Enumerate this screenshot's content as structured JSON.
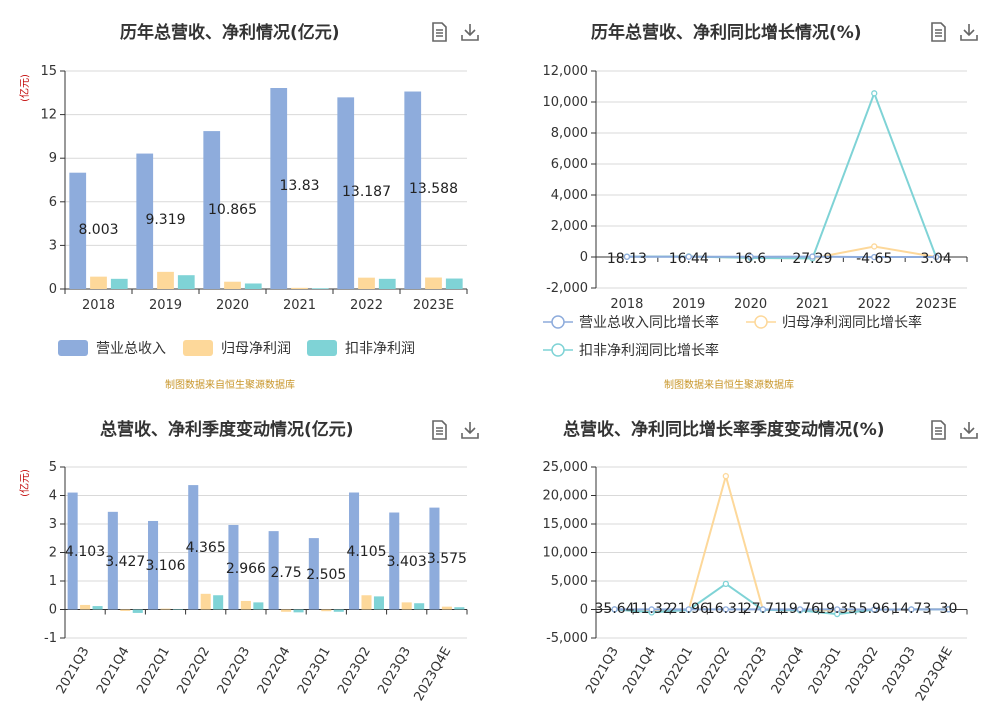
{
  "panels": {
    "p1": {
      "title": "历年总营收、净利情况(亿元)",
      "ylabel": "(亿元)",
      "source": "制图数据来自恒生聚源数据库"
    },
    "p2": {
      "title": "历年总营收、净利同比增长情况(%)",
      "source": "制图数据来自恒生聚源数据库"
    },
    "p3": {
      "title": "总营收、净利季度变动情况(亿元)",
      "ylabel": "(亿元)"
    },
    "p4": {
      "title": "总营收、净利同比增长率季度变动情况(%)"
    }
  },
  "icons": [
    "document-icon",
    "download-icon"
  ],
  "colors": {
    "revenue": "#8eacdc",
    "parent_profit": "#fdd89a",
    "deducted_profit": "#7fd3d6",
    "source_text": "#c8962a",
    "ylabel_text": "#c00000"
  },
  "chart_data": [
    {
      "type": "bar",
      "categories": [
        "2018",
        "2019",
        "2020",
        "2021",
        "2022",
        "2023E"
      ],
      "series": [
        {
          "name": "营业总收入",
          "values": [
            8.003,
            9.319,
            10.865,
            13.83,
            13.187,
            13.588
          ],
          "labels": [
            "8.003",
            "9.319",
            "10.865",
            "13.83",
            "13.187",
            "13.588"
          ]
        },
        {
          "name": "归母净利润",
          "values": [
            0.85,
            1.18,
            0.5,
            0.08,
            0.78,
            0.79
          ]
        },
        {
          "name": "扣非净利润",
          "values": [
            0.7,
            0.95,
            0.38,
            0.05,
            0.7,
            0.72
          ]
        }
      ],
      "ylim": [
        0,
        15
      ],
      "yticks": [
        "0",
        "3",
        "6",
        "9",
        "12",
        "15"
      ],
      "ylabel": "(亿元)",
      "grid": true,
      "legend": "bottom"
    },
    {
      "type": "line",
      "categories": [
        "2018",
        "2019",
        "2020",
        "2021",
        "2022",
        "2023E"
      ],
      "series": [
        {
          "name": "营业总收入同比增长率",
          "values": [
            18.13,
            16.44,
            16.6,
            27.29,
            -4.65,
            3.04
          ],
          "labels": [
            "18.13",
            "16.44",
            "16.6",
            "27.29",
            "-4.65",
            "3.04"
          ]
        },
        {
          "name": "归母净利润同比增长率",
          "values": [
            20,
            38,
            -58,
            -85,
            680,
            2
          ]
        },
        {
          "name": "扣非净利润同比增长率",
          "values": [
            22,
            35,
            -60,
            -88,
            10560,
            4
          ]
        }
      ],
      "ylim": [
        -2000,
        12000
      ],
      "yticks": [
        "-2,000",
        "0",
        "2,000",
        "4,000",
        "6,000",
        "8,000",
        "10,000",
        "12,000"
      ],
      "grid": true,
      "legend": "bottom"
    },
    {
      "type": "bar",
      "categories": [
        "2021Q3",
        "2021Q4",
        "2022Q1",
        "2022Q2",
        "2022Q3",
        "2022Q4",
        "2023Q1",
        "2023Q2",
        "2023Q3",
        "2023Q4E"
      ],
      "series": [
        {
          "name": "营业总收入",
          "values": [
            4.103,
            3.427,
            3.106,
            4.365,
            2.966,
            2.75,
            2.505,
            4.105,
            3.403,
            3.575
          ],
          "labels": [
            "4.103",
            "3.427",
            "3.106",
            "4.365",
            "2.966",
            "2.75",
            "2.505",
            "4.105",
            "3.403",
            "3.575"
          ]
        },
        {
          "name": "归母净利润",
          "values": [
            0.16,
            -0.05,
            0.03,
            0.55,
            0.3,
            -0.08,
            -0.06,
            0.5,
            0.25,
            0.1
          ]
        },
        {
          "name": "扣非净利润",
          "values": [
            0.12,
            -0.12,
            0.01,
            0.5,
            0.25,
            -0.1,
            -0.08,
            0.46,
            0.22,
            0.08
          ]
        }
      ],
      "ylim": [
        -1,
        5
      ],
      "yticks": [
        "-1",
        "0",
        "1",
        "2",
        "3",
        "4",
        "5"
      ],
      "ylabel": "(亿元)",
      "grid": true
    },
    {
      "type": "line",
      "categories": [
        "2021Q3",
        "2021Q4",
        "2022Q1",
        "2022Q2",
        "2022Q3",
        "2022Q4",
        "2023Q1",
        "2023Q2",
        "2023Q3",
        "2023Q4E"
      ],
      "series": [
        {
          "name": "营业总收入同比增长率",
          "values": [
            35.64,
            11.32,
            21.96,
            16.31,
            27.71,
            19.76,
            19.35,
            5.96,
            14.73,
            30
          ],
          "labels": [
            "35.64",
            "11.32",
            "21.96",
            "16.31",
            "27.71",
            "19.76",
            "19.35",
            "5.96",
            "14.73",
            "30"
          ]
        },
        {
          "name": "归母净利润同比增长率",
          "values": [
            30,
            -80,
            -50,
            23400,
            -60,
            -130,
            -150,
            -10,
            20,
            40
          ]
        },
        {
          "name": "扣非净利润同比增长率",
          "values": [
            20,
            -500,
            -60,
            4500,
            -70,
            -150,
            -800,
            -20,
            15,
            30
          ]
        }
      ],
      "ylim": [
        -5000,
        25000
      ],
      "yticks": [
        "-5,000",
        "0",
        "5,000",
        "10,000",
        "15,000",
        "20,000",
        "25,000"
      ],
      "grid": true
    }
  ]
}
